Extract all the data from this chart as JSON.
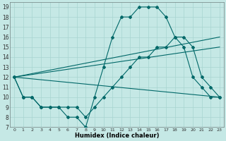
{
  "xlabel": "Humidex (Indice chaleur)",
  "background_color": "#c5e8e5",
  "grid_color": "#a8d4d0",
  "line_color": "#006868",
  "xlim": [
    -0.5,
    23.5
  ],
  "ylim": [
    7,
    19.5
  ],
  "xticks": [
    0,
    1,
    2,
    3,
    4,
    5,
    6,
    7,
    8,
    9,
    10,
    11,
    12,
    13,
    14,
    15,
    16,
    17,
    18,
    19,
    20,
    21,
    22,
    23
  ],
  "yticks": [
    7,
    8,
    9,
    10,
    11,
    12,
    13,
    14,
    15,
    16,
    17,
    18,
    19
  ],
  "line1_x": [
    0,
    1,
    2,
    3,
    4,
    5,
    6,
    7,
    8,
    9,
    10,
    11,
    12,
    13,
    14,
    15,
    16,
    17,
    18,
    19,
    20,
    21,
    22,
    23
  ],
  "line1_y": [
    12,
    10,
    10,
    9,
    9,
    9,
    8,
    8,
    7,
    10,
    13,
    16,
    18,
    18,
    19,
    19,
    19,
    18,
    16,
    15,
    12,
    11,
    10,
    10
  ],
  "line2_x": [
    0,
    1,
    2,
    3,
    4,
    5,
    6,
    7,
    8,
    9,
    10,
    11,
    12,
    13,
    14,
    15,
    16,
    17,
    18,
    19,
    20,
    21,
    22,
    23
  ],
  "line2_y": [
    12,
    10,
    10,
    9,
    9,
    9,
    9,
    9,
    8,
    9,
    10,
    11,
    12,
    13,
    14,
    14,
    15,
    15,
    16,
    16,
    15,
    12,
    11,
    10
  ],
  "line3_x": [
    0,
    23
  ],
  "line3_y": [
    12,
    16
  ],
  "line4_x": [
    0,
    23
  ],
  "line4_y": [
    12,
    15
  ],
  "line5_x": [
    0,
    23
  ],
  "line5_y": [
    12,
    10
  ],
  "markersize": 2.0
}
